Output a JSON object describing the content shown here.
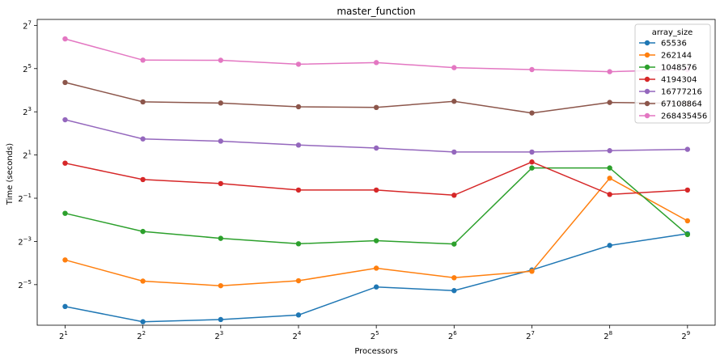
{
  "chart_data": {
    "type": "line",
    "title": "master_function",
    "xlabel": "Processors",
    "ylabel": "Time (seconds)",
    "xscale": "log2",
    "yscale": "log2",
    "x": [
      2,
      4,
      8,
      16,
      32,
      64,
      128,
      256,
      512
    ],
    "x_tick_labels": [
      {
        "base": "2",
        "exp": "1"
      },
      {
        "base": "2",
        "exp": "2"
      },
      {
        "base": "2",
        "exp": "3"
      },
      {
        "base": "2",
        "exp": "4"
      },
      {
        "base": "2",
        "exp": "5"
      },
      {
        "base": "2",
        "exp": "6"
      },
      {
        "base": "2",
        "exp": "7"
      },
      {
        "base": "2",
        "exp": "8"
      },
      {
        "base": "2",
        "exp": "9"
      }
    ],
    "y_tick_labels": [
      {
        "base": "2",
        "exp": "−5",
        "value": 0.03125
      },
      {
        "base": "2",
        "exp": "−3",
        "value": 0.125
      },
      {
        "base": "2",
        "exp": "−1",
        "value": 0.5
      },
      {
        "base": "2",
        "exp": "1",
        "value": 2
      },
      {
        "base": "2",
        "exp": "3",
        "value": 8
      },
      {
        "base": "2",
        "exp": "5",
        "value": 32
      },
      {
        "base": "2",
        "exp": "7",
        "value": 128
      }
    ],
    "ylim": [
      0.0085,
      155
    ],
    "xlim": [
      1.56,
      655
    ],
    "grid": false,
    "legend": {
      "title": "array_size",
      "placement": "top-right"
    },
    "series": [
      {
        "name": "65536",
        "color": "#1f77b4",
        "values": [
          0.0155,
          0.0095,
          0.0102,
          0.0118,
          0.029,
          0.0258,
          0.05,
          0.11,
          0.16
        ]
      },
      {
        "name": "262144",
        "color": "#ff7f0e",
        "values": [
          0.069,
          0.035,
          0.0302,
          0.0354,
          0.053,
          0.039,
          0.048,
          0.95,
          0.242
        ]
      },
      {
        "name": "1048576",
        "color": "#2ca02c",
        "values": [
          0.308,
          0.172,
          0.138,
          0.116,
          0.128,
          0.115,
          1.32,
          1.32,
          0.156
        ]
      },
      {
        "name": "4194304",
        "color": "#d62728",
        "values": [
          1.54,
          0.91,
          0.8,
          0.65,
          0.65,
          0.55,
          1.6,
          0.565,
          0.65
        ]
      },
      {
        "name": "16777216",
        "color": "#9467bd",
        "values": [
          6.2,
          3.35,
          3.12,
          2.75,
          2.5,
          2.2,
          2.2,
          2.3,
          2.4
        ]
      },
      {
        "name": "67108864",
        "color": "#8c564b",
        "values": [
          20.5,
          11.0,
          10.6,
          9.4,
          9.2,
          11.2,
          7.7,
          10.8,
          10.5
        ]
      },
      {
        "name": "268435456",
        "color": "#e377c2",
        "values": [
          83.0,
          42.0,
          41.8,
          36.8,
          38.8,
          33.0,
          31.0,
          29.0,
          31.0
        ]
      }
    ]
  }
}
